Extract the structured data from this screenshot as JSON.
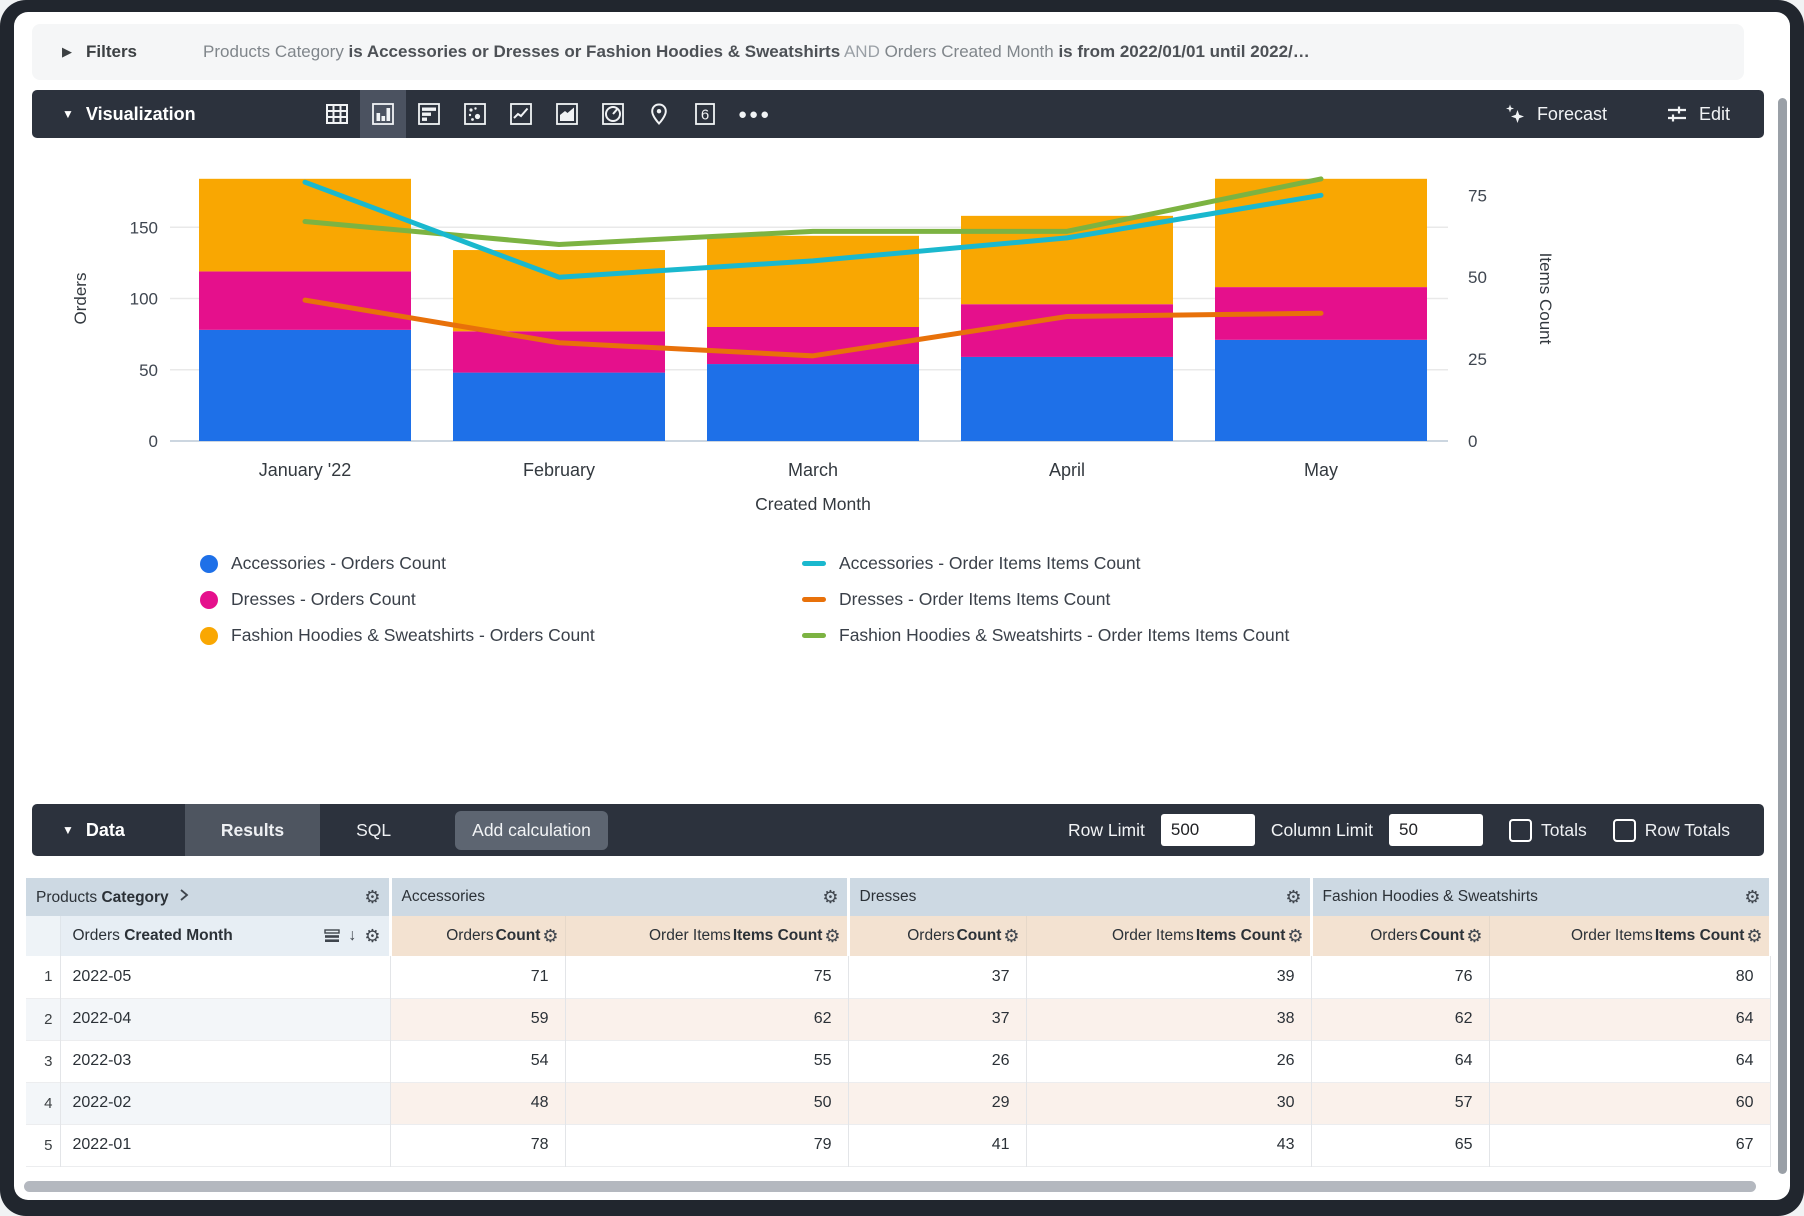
{
  "filters": {
    "label": "Filters",
    "parts": [
      {
        "text": "Products Category ",
        "style": "regular"
      },
      {
        "text": "is Accessories or Dresses or Fashion Hoodies & Sweatshirts",
        "style": "bold"
      },
      {
        "text": " AND ",
        "style": "faint"
      },
      {
        "text": "Orders Created Month ",
        "style": "regular"
      },
      {
        "text": "is from 2022/01/01 until 2022/…",
        "style": "bold"
      }
    ]
  },
  "viz_toolbar": {
    "title": "Visualization",
    "icons": [
      "table-chart-icon",
      "column-chart-icon",
      "bar-chart-icon",
      "scatter-chart-icon",
      "line-chart-icon",
      "area-chart-icon",
      "pie-chart-icon",
      "map-chart-icon",
      "single-value-icon",
      "more-options-icon"
    ],
    "selected_icon": "column-chart-icon",
    "single_value_glyph": "6",
    "forecast_label": "Forecast",
    "edit_label": "Edit"
  },
  "chart_data": {
    "type": "combo-stacked-bar-and-line",
    "categories": [
      "January '22",
      "February",
      "March",
      "April",
      "May"
    ],
    "bar_series": [
      {
        "name": "Accessories - Orders Count",
        "color": "#1e70e8",
        "values": [
          78,
          48,
          54,
          59,
          71
        ]
      },
      {
        "name": "Dresses - Orders Count",
        "color": "#e5108c",
        "values": [
          41,
          29,
          26,
          37,
          37
        ]
      },
      {
        "name": "Fashion Hoodies & Sweatshirts - Orders Count",
        "color": "#f9a702",
        "values": [
          65,
          57,
          64,
          62,
          76
        ]
      }
    ],
    "line_series": [
      {
        "name": "Accessories - Order Items Items Count",
        "color": "#1ab8ce",
        "values": [
          79,
          50,
          55,
          62,
          75
        ]
      },
      {
        "name": "Dresses - Order Items Items Count",
        "color": "#e8710a",
        "values": [
          43,
          30,
          26,
          38,
          39
        ]
      },
      {
        "name": "Fashion Hoodies & Sweatshirts - Order Items Items Count",
        "color": "#7cb342",
        "values": [
          67,
          60,
          64,
          64,
          80
        ]
      }
    ],
    "left_axis": {
      "title": "Orders",
      "ticks": [
        0,
        50,
        100,
        150
      ],
      "max": 200
    },
    "right_axis": {
      "title": "Items Count",
      "ticks": [
        0,
        25,
        50,
        75
      ],
      "max": 87
    },
    "xlabel": "Created Month",
    "grid": true,
    "legend_position": "bottom"
  },
  "data_toolbar": {
    "title": "Data",
    "tabs": [
      {
        "label": "Results",
        "active": true
      },
      {
        "label": "SQL",
        "active": false
      }
    ],
    "add_calculation_label": "Add calculation",
    "row_limit_label": "Row Limit",
    "row_limit_value": "500",
    "column_limit_label": "Column Limit",
    "column_limit_value": "50",
    "totals_label": "Totals",
    "totals_checked": false,
    "row_totals_label": "Row Totals",
    "row_totals_checked": false
  },
  "table": {
    "dimension_group_header": {
      "plain": "Products ",
      "bold": "Category"
    },
    "group_headers": [
      "Accessories",
      "Dresses",
      "Fashion Hoodies & Sweatshirts"
    ],
    "dimension_header": {
      "plain": "Orders ",
      "bold": "Created Month"
    },
    "measure_header_pair": [
      {
        "plain": "Orders ",
        "bold": "Count"
      },
      {
        "plain": "Order Items ",
        "bold": "Items Count"
      }
    ],
    "rows": [
      {
        "n": "1",
        "month": "2022-05",
        "values": [
          71,
          75,
          37,
          39,
          76,
          80
        ]
      },
      {
        "n": "2",
        "month": "2022-04",
        "values": [
          59,
          62,
          37,
          38,
          62,
          64
        ]
      },
      {
        "n": "3",
        "month": "2022-03",
        "values": [
          54,
          55,
          26,
          26,
          64,
          64
        ]
      },
      {
        "n": "4",
        "month": "2022-02",
        "values": [
          48,
          50,
          29,
          30,
          57,
          60
        ]
      },
      {
        "n": "5",
        "month": "2022-01",
        "values": [
          78,
          79,
          41,
          43,
          65,
          67
        ]
      }
    ]
  },
  "colors": {
    "toolbar_bg": "#2c323d",
    "selected_tile": "#4b5260",
    "group_header_bg": "#cdd9e3",
    "measure_header_bg": "#f3e2d1",
    "even_row_dim_bg": "#f3f6f9",
    "even_row_measure_bg": "#faf1eb"
  }
}
